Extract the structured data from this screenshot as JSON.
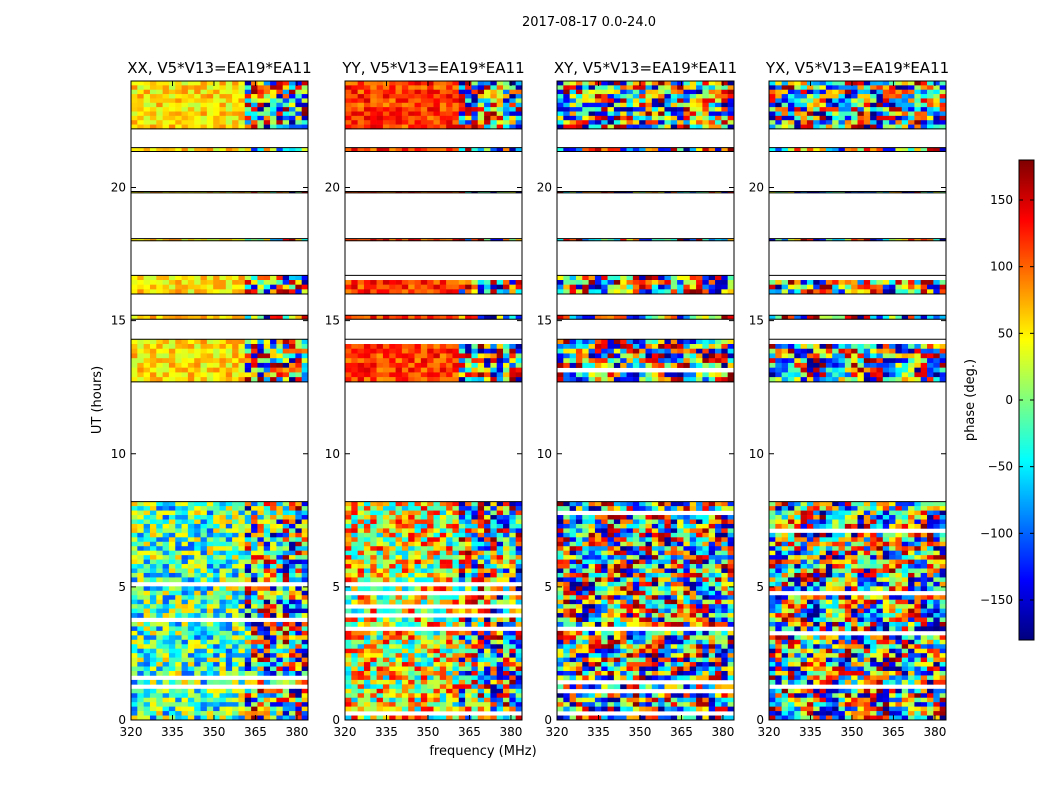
{
  "figure_title": "2017-08-17 0.0-24.0",
  "chart_data": [
    {
      "type": "heatmap",
      "title": "XX, V5*V13=EA19*EA11",
      "xlabel": "frequency (MHz)",
      "ylabel": "UT (hours)",
      "xlim": [
        320,
        384
      ],
      "ylim": [
        0,
        24
      ],
      "xticks": [
        320,
        335,
        350,
        365,
        380
      ],
      "yticks": [
        0,
        5,
        10,
        15,
        20
      ],
      "palette_mode": "xx"
    },
    {
      "type": "heatmap",
      "title": "YY, V5*V13=EA19*EA11",
      "xlabel": "frequency (MHz)",
      "ylabel": "UT (hours)",
      "xlim": [
        320,
        384
      ],
      "ylim": [
        0,
        24
      ],
      "xticks": [
        320,
        335,
        350,
        365,
        380
      ],
      "yticks": [
        0,
        5,
        10,
        15,
        20
      ],
      "palette_mode": "yy"
    },
    {
      "type": "heatmap",
      "title": "XY, V5*V13=EA19*EA11",
      "xlabel": "frequency (MHz)",
      "ylabel": "UT (hours)",
      "xlim": [
        320,
        384
      ],
      "ylim": [
        0,
        24
      ],
      "xticks": [
        320,
        335,
        350,
        365,
        380
      ],
      "yticks": [
        0,
        5,
        10,
        15,
        20
      ],
      "palette_mode": "cross"
    },
    {
      "type": "heatmap",
      "title": "YX, V5*V13=EA19*EA11",
      "xlabel": "frequency (MHz)",
      "ylabel": "UT (hours)",
      "xlim": [
        320,
        384
      ],
      "ylim": [
        0,
        24
      ],
      "xticks": [
        320,
        335,
        350,
        365,
        380
      ],
      "yticks": [
        0,
        5,
        10,
        15,
        20
      ],
      "palette_mode": "cross"
    }
  ],
  "shared_xlabel": "frequency (MHz)",
  "shared_ylabel": "UT (hours)",
  "data_time_blocks": [
    [
      0.0,
      8.2
    ],
    [
      12.7,
      14.3
    ],
    [
      15.05,
      15.2
    ],
    [
      16.0,
      16.7
    ],
    [
      18.0,
      18.08
    ],
    [
      19.8,
      19.85
    ],
    [
      21.35,
      21.5
    ],
    [
      22.2,
      24.0
    ]
  ],
  "colorbar": {
    "label": "phase (deg.)",
    "range": [
      -180,
      180
    ],
    "ticks": [
      -150,
      -100,
      -50,
      0,
      50,
      100,
      150
    ],
    "tick_labels": [
      "−150",
      "−100",
      "−50",
      "0",
      "50",
      "100",
      "150"
    ],
    "colormap": "jet",
    "colormap_stops": [
      "#00007f",
      "#0000ff",
      "#007fff",
      "#00ffff",
      "#7fff7f",
      "#ffff00",
      "#ff7f00",
      "#ff0000",
      "#7f0000"
    ]
  }
}
